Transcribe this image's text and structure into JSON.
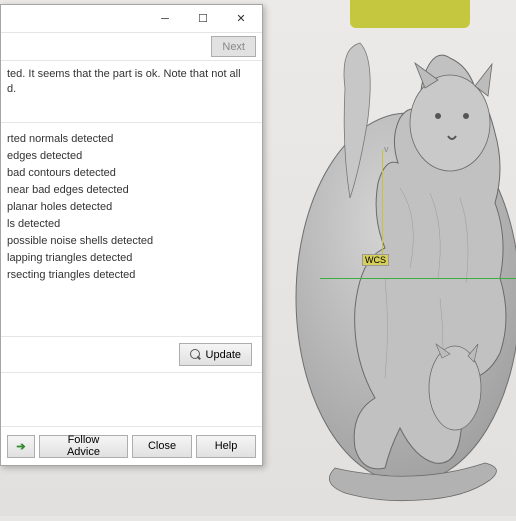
{
  "window": {
    "next_label": "Next",
    "info_text": "ted. It seems that the part is ok. Note that not all\nd.",
    "detections": [
      "rted normals detected",
      "edges detected",
      "bad contours detected",
      "near bad edges detected",
      "planar holes detected",
      "ls detected",
      "possible noise shells detected",
      "lapping triangles detected",
      "rsecting triangles detected"
    ],
    "update_label": "Update",
    "follow_label": "Follow Advice",
    "close_label": "Close",
    "help_label": "Help"
  },
  "scene": {
    "wcs_label": "WCS",
    "axis_v_label": "v",
    "colors": {
      "bg_top": "#eceae8",
      "bg_bottom": "#e2e0de",
      "yellow_obj": "#c5c83e",
      "axis_green": "#3eae3e",
      "model_fill": "#bdbdbd",
      "model_stroke": "#6f6f6f"
    }
  }
}
